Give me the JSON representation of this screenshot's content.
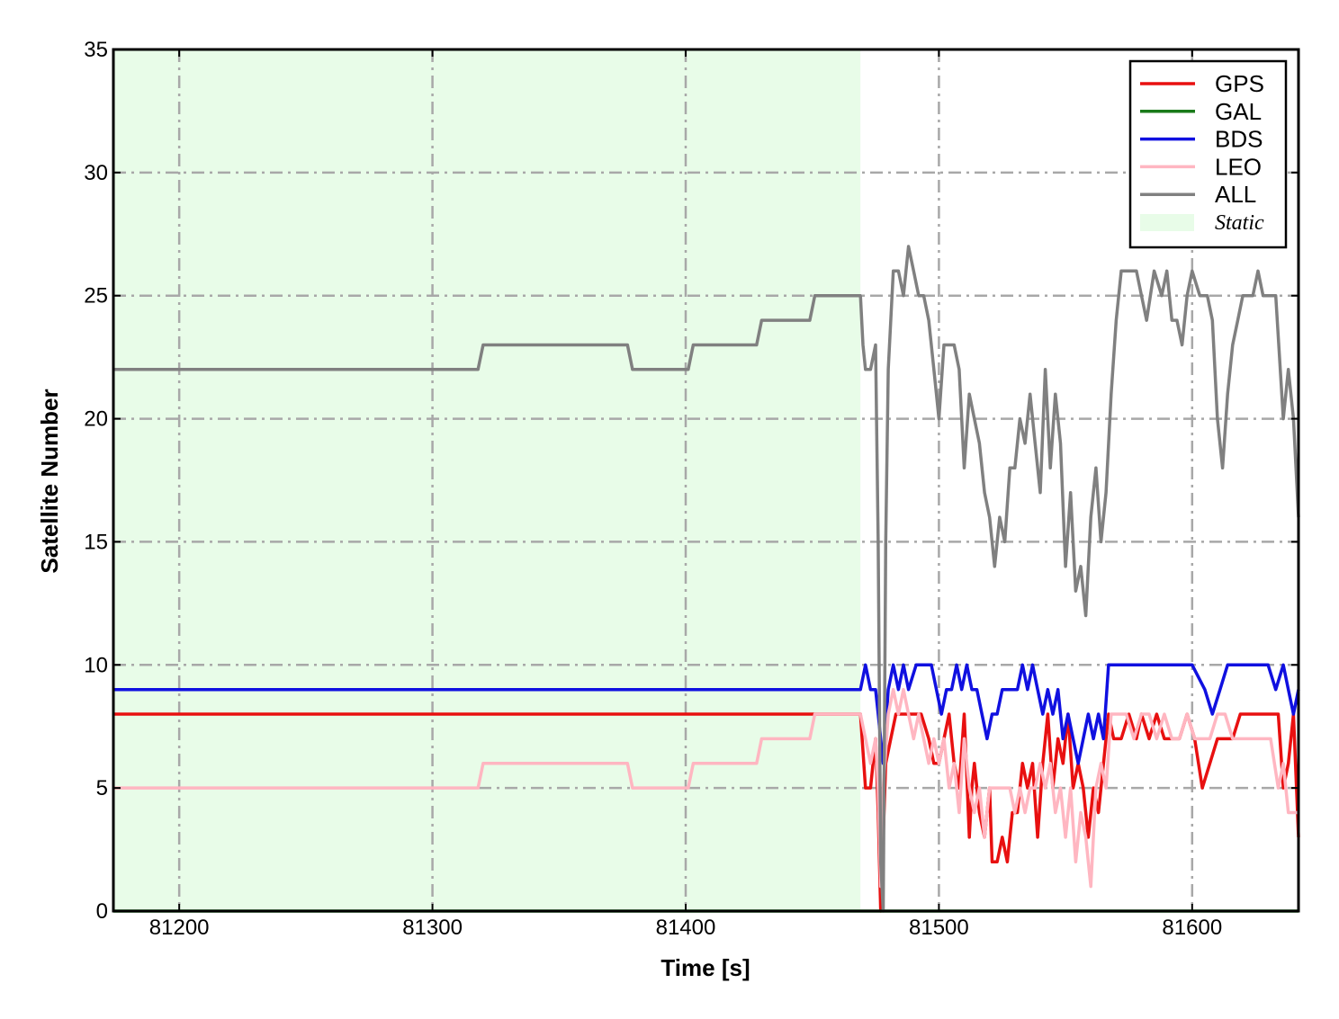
{
  "chart_data": {
    "type": "line",
    "xlabel": "Time [s]",
    "ylabel": "Satellite Number",
    "xlim": [
      81174,
      81642
    ],
    "ylim": [
      0,
      35
    ],
    "xticks": [
      81200,
      81300,
      81400,
      81500,
      81600
    ],
    "yticks": [
      0,
      5,
      10,
      15,
      20,
      25,
      30,
      35
    ],
    "grid": true,
    "grid_style": "dash-dot",
    "legend_position": "top-right",
    "shaded_region": {
      "name": "Static",
      "x": [
        81174,
        81469
      ],
      "color": "#e8fce8"
    },
    "series": [
      {
        "name": "GPS",
        "color": "#e81010",
        "x": [
          81174,
          81469,
          81471,
          81473,
          81475,
          81476,
          81477,
          81478,
          81479,
          81481,
          81483,
          81485,
          81487,
          81490,
          81493,
          81496,
          81498,
          81500,
          81502,
          81504,
          81506,
          81508,
          81510,
          81512,
          81513,
          81514,
          81516,
          81518,
          81520,
          81521,
          81523,
          81525,
          81527,
          81529,
          81531,
          81533,
          81535,
          81537,
          81539,
          81541,
          81543,
          81545,
          81547,
          81549,
          81551,
          81553,
          81555,
          81557,
          81559,
          81561,
          81563,
          81565,
          81567,
          81569,
          81572,
          81575,
          81578,
          81580,
          81583,
          81586,
          81589,
          81592,
          81595,
          81598,
          81601,
          81604,
          81607,
          81610,
          81613,
          81616,
          81619,
          81622,
          81625,
          81628,
          81631,
          81634,
          81636,
          81638,
          81640,
          81642
        ],
        "y": [
          8,
          8,
          5,
          5,
          7,
          4,
          0,
          3,
          6,
          7,
          8,
          8,
          8,
          8,
          8,
          7,
          6,
          6,
          7,
          8,
          6,
          5,
          8,
          3,
          5,
          6,
          4,
          3,
          5,
          2,
          2,
          3,
          2,
          4,
          4,
          6,
          5,
          6,
          3,
          6,
          8,
          5,
          7,
          6,
          8,
          5,
          6,
          5,
          3,
          5,
          4,
          6,
          8,
          7,
          7,
          8,
          7,
          8,
          7,
          8,
          7,
          7,
          7,
          8,
          7,
          5,
          6,
          7,
          7,
          7,
          8,
          8,
          8,
          8,
          8,
          8,
          5,
          6,
          8,
          3
        ]
      },
      {
        "name": "GAL",
        "color": "#1a7a1a",
        "x": [
          81174,
          81642
        ],
        "y": [
          0,
          0
        ]
      },
      {
        "name": "BDS",
        "color": "#1010e0",
        "x": [
          81174,
          81469,
          81471,
          81473,
          81475,
          81476,
          81477,
          81478,
          81480,
          81482,
          81484,
          81486,
          81488,
          81491,
          81494,
          81497,
          81499,
          81501,
          81503,
          81505,
          81507,
          81509,
          81511,
          81513,
          81515,
          81517,
          81519,
          81521,
          81523,
          81525,
          81527,
          81529,
          81531,
          81533,
          81535,
          81537,
          81539,
          81541,
          81543,
          81545,
          81547,
          81549,
          81551,
          81553,
          81555,
          81557,
          81559,
          81561,
          81563,
          81565,
          81567,
          81570,
          81575,
          81580,
          81585,
          81590,
          81595,
          81600,
          81605,
          81608,
          81611,
          81614,
          81617,
          81620,
          81625,
          81630,
          81633,
          81636,
          81638,
          81640,
          81642
        ],
        "y": [
          9,
          9,
          10,
          9,
          9,
          8,
          7,
          6,
          9,
          10,
          9,
          10,
          9,
          10,
          10,
          10,
          9,
          8,
          9,
          9,
          10,
          9,
          10,
          9,
          9,
          8,
          7,
          8,
          8,
          9,
          9,
          9,
          9,
          10,
          9,
          10,
          9,
          8,
          9,
          8,
          9,
          7,
          8,
          7,
          6,
          7,
          8,
          7,
          8,
          7,
          10,
          10,
          10,
          10,
          10,
          10,
          10,
          10,
          9,
          8,
          9,
          10,
          10,
          10,
          10,
          10,
          9,
          10,
          9,
          8,
          9
        ]
      },
      {
        "name": "LEO",
        "color": "#ffb6c1",
        "x": [
          81174,
          81318,
          81320,
          81377,
          81379,
          81401,
          81403,
          81428,
          81430,
          81449,
          81451,
          81469,
          81471,
          81473,
          81475,
          81476,
          81477,
          81478,
          81480,
          81482,
          81484,
          81486,
          81488,
          81490,
          81492,
          81494,
          81496,
          81498,
          81500,
          81502,
          81504,
          81506,
          81508,
          81510,
          81512,
          81514,
          81516,
          81518,
          81520,
          81522,
          81524,
          81526,
          81528,
          81530,
          81532,
          81534,
          81536,
          81538,
          81540,
          81542,
          81544,
          81546,
          81548,
          81550,
          81552,
          81554,
          81556,
          81558,
          81560,
          81562,
          81564,
          81566,
          81568,
          81571,
          81574,
          81577,
          81580,
          81583,
          81586,
          81589,
          81592,
          81595,
          81598,
          81601,
          81604,
          81607,
          81610,
          81613,
          81616,
          81619,
          81622,
          81625,
          81628,
          81631,
          81634,
          81636,
          81638,
          81640,
          81642
        ],
        "y": [
          5,
          5,
          6,
          6,
          5,
          5,
          6,
          6,
          7,
          7,
          8,
          8,
          7,
          6,
          7,
          5,
          1,
          5,
          8,
          9,
          8,
          9,
          8,
          7,
          8,
          7,
          6,
          7,
          6,
          7,
          5,
          6,
          4,
          7,
          5,
          4,
          5,
          3,
          5,
          5,
          5,
          5,
          5,
          4,
          5,
          4,
          5,
          5,
          6,
          5,
          6,
          4,
          5,
          3,
          5,
          2,
          4,
          3,
          1,
          5,
          6,
          5,
          8,
          8,
          8,
          7,
          8,
          8,
          7,
          8,
          7,
          7,
          8,
          7,
          7,
          7,
          8,
          8,
          7,
          7,
          7,
          7,
          7,
          7,
          5,
          6,
          4,
          4,
          4
        ]
      },
      {
        "name": "ALL",
        "color": "#808080",
        "x": [
          81174,
          81318,
          81320,
          81377,
          81379,
          81401,
          81403,
          81428,
          81430,
          81449,
          81451,
          81469,
          81470,
          81471,
          81473,
          81475,
          81476,
          81477,
          81478,
          81479,
          81480,
          81482,
          81484,
          81486,
          81487,
          81488,
          81490,
          81492,
          81494,
          81496,
          81498,
          81500,
          81502,
          81504,
          81506,
          81508,
          81510,
          81512,
          81514,
          81516,
          81518,
          81520,
          81522,
          81524,
          81526,
          81528,
          81530,
          81532,
          81534,
          81536,
          81538,
          81540,
          81542,
          81544,
          81546,
          81548,
          81550,
          81552,
          81554,
          81556,
          81558,
          81560,
          81562,
          81564,
          81566,
          81568,
          81570,
          81572,
          81575,
          81578,
          81580,
          81582,
          81585,
          81588,
          81590,
          81592,
          81594,
          81596,
          81598,
          81600,
          81603,
          81606,
          81608,
          81610,
          81612,
          81614,
          81616,
          81618,
          81620,
          81622,
          81624,
          81626,
          81628,
          81630,
          81633,
          81636,
          81638,
          81640,
          81642
        ],
        "y": [
          22,
          22,
          23,
          23,
          22,
          22,
          23,
          23,
          24,
          24,
          25,
          25,
          23,
          22,
          22,
          23,
          15,
          2,
          0,
          15,
          22,
          26,
          26,
          25,
          26,
          27,
          26,
          25,
          25,
          24,
          22,
          20,
          23,
          23,
          23,
          22,
          18,
          21,
          20,
          19,
          17,
          16,
          14,
          16,
          15,
          18,
          18,
          20,
          19,
          21,
          19,
          17,
          22,
          18,
          21,
          19,
          14,
          17,
          13,
          14,
          12,
          16,
          18,
          15,
          17,
          21,
          24,
          26,
          26,
          26,
          25,
          24,
          26,
          25,
          26,
          24,
          24,
          23,
          25,
          26,
          25,
          25,
          24,
          20,
          18,
          21,
          23,
          24,
          25,
          25,
          25,
          26,
          25,
          25,
          25,
          20,
          22,
          20,
          16
        ]
      }
    ]
  }
}
